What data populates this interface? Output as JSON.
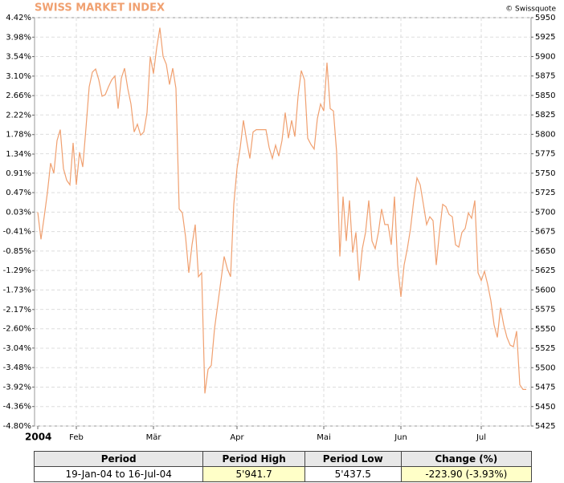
{
  "chart_data": {
    "type": "line",
    "title": "SWISS MARKET INDEX",
    "credit": "© Swissquote",
    "color": "#f0a070",
    "grid": true,
    "categories": [
      "2004",
      null,
      null,
      null,
      null,
      null,
      null,
      null,
      null,
      null,
      null,
      null,
      "Feb",
      null,
      null,
      null,
      null,
      null,
      null,
      null,
      null,
      null,
      null,
      null,
      null,
      null,
      null,
      null,
      null,
      null,
      null,
      null,
      null,
      null,
      null,
      null,
      "Mär",
      null,
      null,
      null,
      null,
      null,
      null,
      null,
      null,
      null,
      null,
      null,
      null,
      null,
      null,
      null,
      null,
      null,
      null,
      null,
      null,
      null,
      null,
      null,
      null,
      null,
      "Apr",
      null,
      null,
      null,
      null,
      null,
      null,
      null,
      null,
      null,
      null,
      null,
      null,
      null,
      null,
      null,
      null,
      null,
      null,
      null,
      null,
      null,
      null,
      null,
      null,
      null,
      null,
      "Mai",
      null,
      null,
      null,
      null,
      null,
      null,
      null,
      null,
      null,
      null,
      null,
      null,
      null,
      null,
      null,
      null,
      null,
      null,
      null,
      null,
      null,
      null,
      null,
      "Jun",
      null,
      null,
      null,
      null,
      null,
      null,
      null,
      null,
      null,
      null,
      null,
      null,
      null,
      null,
      null,
      null,
      null,
      null,
      null,
      null,
      null,
      null,
      null,
      null,
      "Jul",
      null,
      null,
      null,
      null,
      null,
      null,
      null,
      null,
      null,
      null,
      null,
      null,
      null,
      null
    ],
    "values": [
      5700,
      5665,
      5694,
      5725,
      5763,
      5750,
      5792,
      5806,
      5756,
      5741,
      5735,
      5789,
      5735,
      5777,
      5758,
      5808,
      5861,
      5880,
      5884,
      5870,
      5849,
      5851,
      5861,
      5870,
      5875,
      5833,
      5872,
      5885,
      5859,
      5839,
      5803,
      5813,
      5799,
      5803,
      5828,
      5900,
      5878,
      5911,
      5937,
      5900,
      5890,
      5864,
      5885,
      5859,
      5704,
      5699,
      5668,
      5622,
      5658,
      5684,
      5617,
      5622,
      5467,
      5498,
      5503,
      5550,
      5581,
      5612,
      5643,
      5627,
      5617,
      5710,
      5756,
      5783,
      5818,
      5792,
      5769,
      5803,
      5806,
      5806,
      5806,
      5806,
      5783,
      5769,
      5786,
      5772,
      5792,
      5828,
      5795,
      5818,
      5797,
      5849,
      5882,
      5870,
      5795,
      5787,
      5781,
      5820,
      5839,
      5830,
      5892,
      5833,
      5830,
      5777,
      5643,
      5720,
      5663,
      5715,
      5648,
      5674,
      5612,
      5653,
      5674,
      5715,
      5663,
      5653,
      5674,
      5704,
      5684,
      5684,
      5658,
      5720,
      5632,
      5591,
      5632,
      5653,
      5679,
      5715,
      5744,
      5735,
      5710,
      5684,
      5694,
      5689,
      5632,
      5674,
      5710,
      5707,
      5697,
      5694,
      5658,
      5655,
      5674,
      5679,
      5699,
      5692,
      5715,
      5622,
      5612,
      5624,
      5607,
      5586,
      5555,
      5539,
      5577,
      5555,
      5539,
      5529,
      5527,
      5547,
      5478,
      5472,
      5472
    ],
    "ylim": [
      5425,
      5950
    ],
    "yticks": [
      5425,
      5450,
      5475,
      5500,
      5525,
      5550,
      5575,
      5600,
      5625,
      5650,
      5675,
      5700,
      5725,
      5750,
      5775,
      5800,
      5825,
      5850,
      5875,
      5900,
      5925,
      5950
    ],
    "y2lim": [
      -4.8,
      4.42
    ],
    "y2ticks": [
      {
        "value": -4.8,
        "label": "-4.80%"
      },
      {
        "value": -4.36,
        "label": "-4.36%"
      },
      {
        "value": -3.92,
        "label": "-3.92%"
      },
      {
        "value": -3.48,
        "label": "-3.48%"
      },
      {
        "value": -3.04,
        "label": "-3.04%"
      },
      {
        "value": -2.6,
        "label": "-2.60%"
      },
      {
        "value": -2.17,
        "label": "-2.17%"
      },
      {
        "value": -1.73,
        "label": "-1.73%"
      },
      {
        "value": -1.29,
        "label": "-1.29%"
      },
      {
        "value": -0.85,
        "label": "-0.85%"
      },
      {
        "value": -0.41,
        "label": "-0.41%"
      },
      {
        "value": 0.03,
        "label": "0.03%"
      },
      {
        "value": 0.47,
        "label": "0.47%"
      },
      {
        "value": 0.91,
        "label": "0.91%"
      },
      {
        "value": 1.34,
        "label": "1.34%"
      },
      {
        "value": 1.78,
        "label": "1.78%"
      },
      {
        "value": 2.22,
        "label": "2.22%"
      },
      {
        "value": 2.66,
        "label": "2.66%"
      },
      {
        "value": 3.1,
        "label": "3.10%"
      },
      {
        "value": 3.54,
        "label": "3.54%"
      },
      {
        "value": 3.98,
        "label": "3.98%"
      },
      {
        "value": 4.42,
        "label": "4.42%"
      }
    ]
  },
  "table": {
    "header": [
      "Period",
      "Period High",
      "Period Low",
      "Change (%)"
    ],
    "rows": [
      [
        "19-Jan-04 to 16-Jul-04",
        "5'941.7",
        "5'437.5",
        "-223.90 (-3.93%)"
      ]
    ]
  }
}
